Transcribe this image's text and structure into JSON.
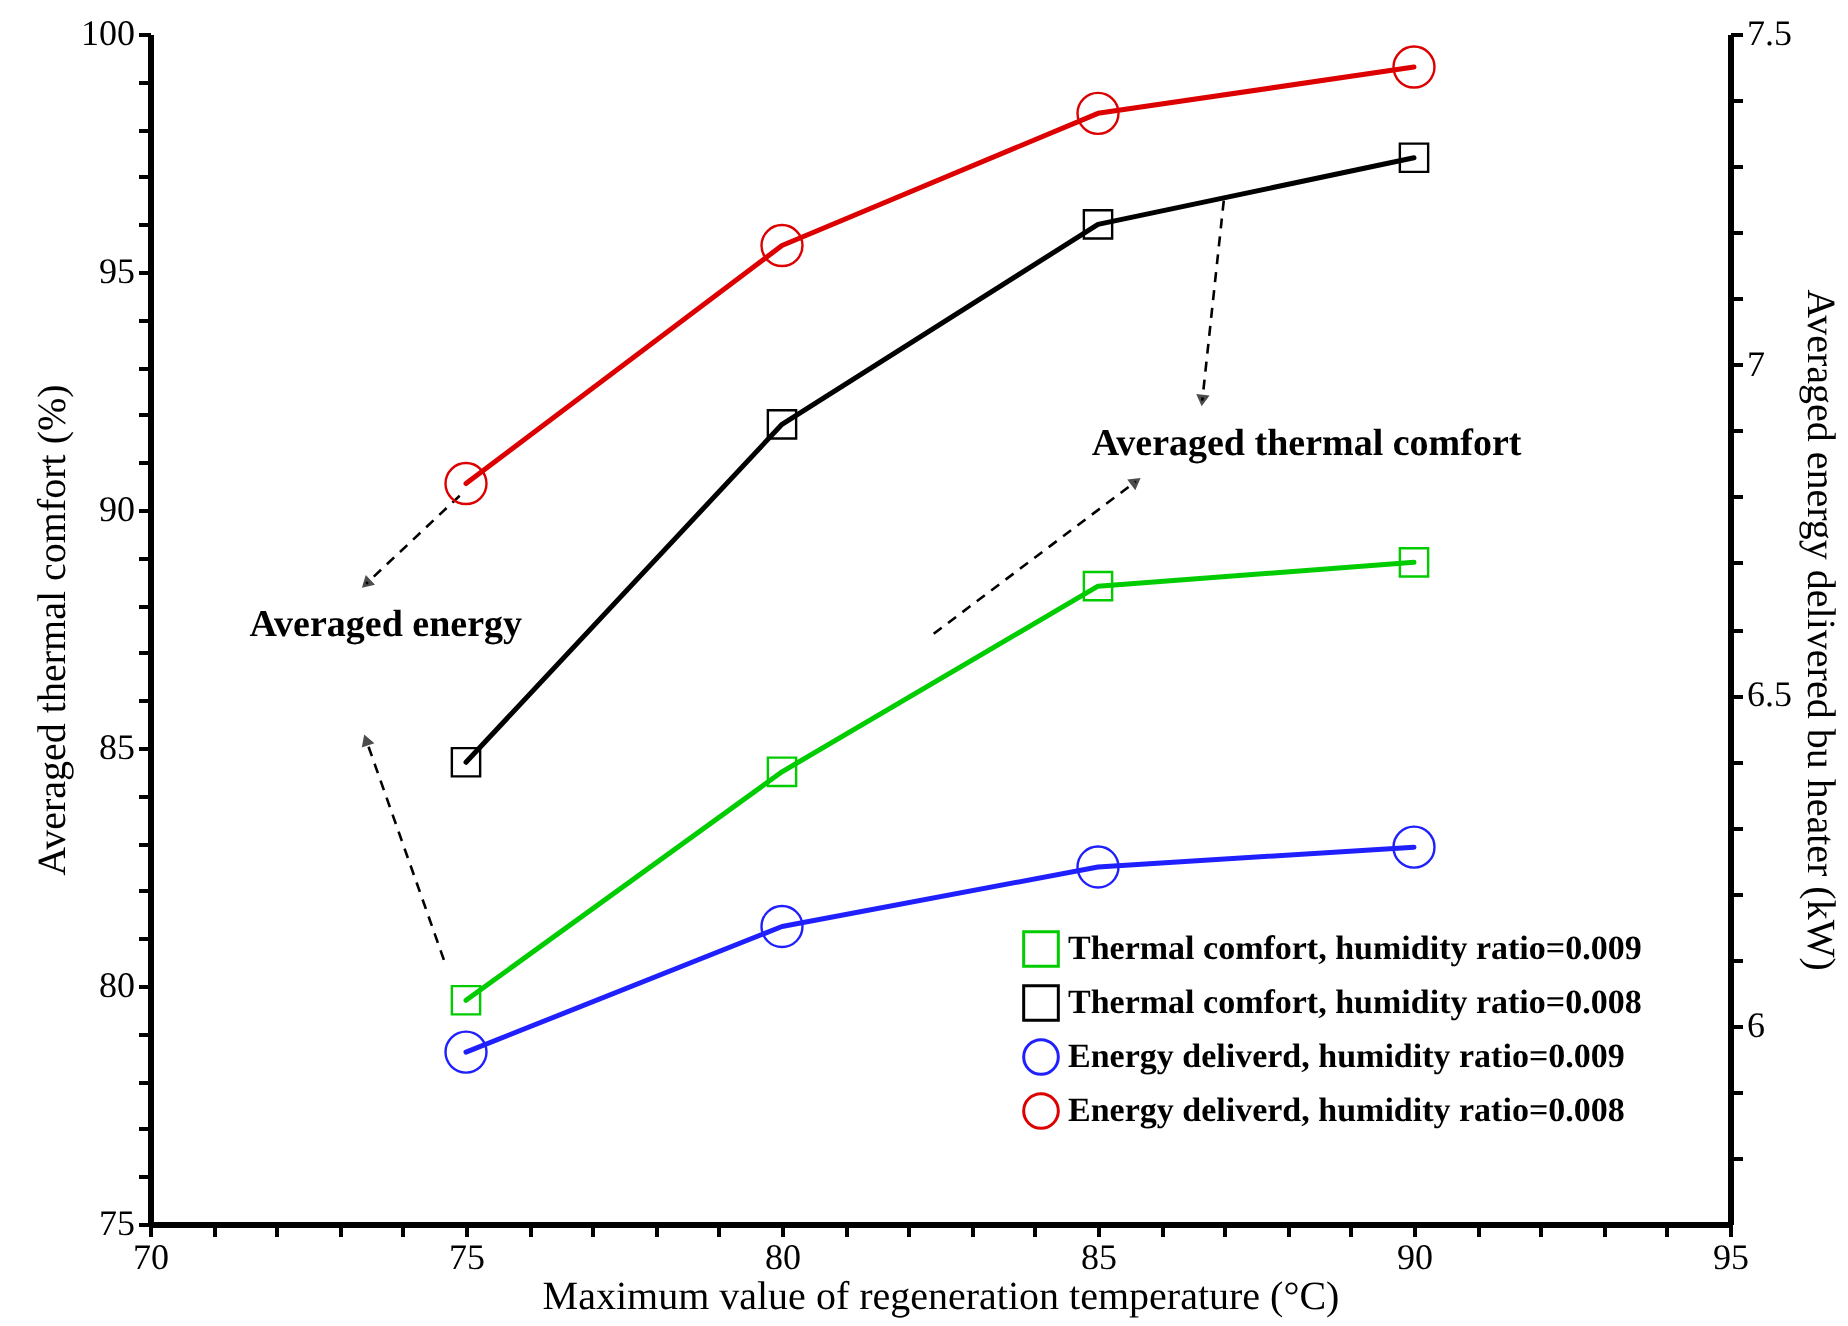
{
  "chart_data": {
    "type": "line",
    "xlabel": "Maximum value of regeneration temperature (°C)",
    "ylabel": "Averaged thermal comfort (%)",
    "y2label": "Averaged energy delivered bu heater (kW)",
    "x": [
      75,
      80,
      85,
      90
    ],
    "series": [
      {
        "name": "Thermal comfort, humidity ratio=0.009",
        "color": "#00cc00",
        "marker": "square",
        "values": [
          79.7,
          84.5,
          88.4,
          88.9
        ]
      },
      {
        "name": "Thermal comfort, humidity ratio=0.008",
        "color": "#000000",
        "marker": "square",
        "values": [
          84.7,
          91.8,
          96.0,
          97.4
        ]
      },
      {
        "name": "Energy deliverd, humidity ratio=0.009",
        "color": "#2020ff",
        "marker": "circle",
        "axis": "y2",
        "values": [
          5.96,
          6.15,
          6.24,
          6.27
        ]
      },
      {
        "name": "Energy deliverd, humidity ratio=0.008",
        "color": "#dd0000",
        "marker": "circle",
        "axis": "y2",
        "values": [
          6.82,
          7.18,
          7.38,
          7.45
        ]
      }
    ],
    "xlim": [
      70,
      95
    ],
    "xticks": [
      70,
      {
        "value": 71,
        "label": null
      },
      {
        "value": 72,
        "label": null
      },
      {
        "value": 73,
        "label": null
      },
      {
        "value": 74,
        "label": null
      },
      75,
      {
        "value": 76,
        "label": null
      },
      {
        "value": 77,
        "label": null
      },
      {
        "value": 78,
        "label": null
      },
      {
        "value": 79,
        "label": null
      },
      80,
      {
        "value": 81,
        "label": null
      },
      {
        "value": 82,
        "label": null
      },
      {
        "value": 83,
        "label": null
      },
      {
        "value": 84,
        "label": null
      },
      85,
      {
        "value": 86,
        "label": null
      },
      {
        "value": 87,
        "label": null
      },
      {
        "value": 88,
        "label": null
      },
      {
        "value": 89,
        "label": null
      },
      90,
      {
        "value": 91,
        "label": null
      },
      {
        "value": 92,
        "label": null
      },
      {
        "value": 93,
        "label": null
      },
      {
        "value": 94,
        "label": null
      },
      95
    ],
    "ylim": [
      75,
      100
    ],
    "yticks": [
      75,
      {
        "value": 76,
        "label": null
      },
      {
        "value": 77,
        "label": null
      },
      {
        "value": 78,
        "label": null
      },
      {
        "value": 79,
        "label": null
      },
      80,
      {
        "value": 81,
        "label": null
      },
      {
        "value": 82,
        "label": null
      },
      {
        "value": 83,
        "label": null
      },
      {
        "value": 84,
        "label": null
      },
      85,
      {
        "value": 86,
        "label": null
      },
      {
        "value": 87,
        "label": null
      },
      {
        "value": 88,
        "label": null
      },
      {
        "value": 89,
        "label": null
      },
      90,
      {
        "value": 91,
        "label": null
      },
      {
        "value": 92,
        "label": null
      },
      {
        "value": 93,
        "label": null
      },
      {
        "value": 94,
        "label": null
      },
      95,
      {
        "value": 96,
        "label": null
      },
      {
        "value": 97,
        "label": null
      },
      {
        "value": 98,
        "label": null
      },
      {
        "value": 99,
        "label": null
      },
      100
    ],
    "y2lim": [
      5.7,
      7.5
    ],
    "y2ticks": [
      {
        "value": 5.8,
        "label": null
      },
      {
        "value": 5.9,
        "label": null
      },
      6,
      {
        "value": 6.1,
        "label": null
      },
      {
        "value": 6.2,
        "label": null
      },
      {
        "value": 6.3,
        "label": null
      },
      {
        "value": 6.4,
        "label": null
      },
      6.5,
      {
        "value": 6.6,
        "label": null
      },
      {
        "value": 6.7,
        "label": null
      },
      {
        "value": 6.8,
        "label": null
      },
      {
        "value": 6.9,
        "label": null
      },
      7,
      {
        "value": 7.1,
        "label": null
      },
      {
        "value": 7.2,
        "label": null
      },
      {
        "value": 7.3,
        "label": null
      },
      {
        "value": 7.4,
        "label": null
      },
      7.5
    ],
    "annotations": [
      "Averaged energy",
      "Averaged thermal comfort"
    ],
    "legend": "bottom right",
    "grid": false,
    "line_style": "solid"
  }
}
